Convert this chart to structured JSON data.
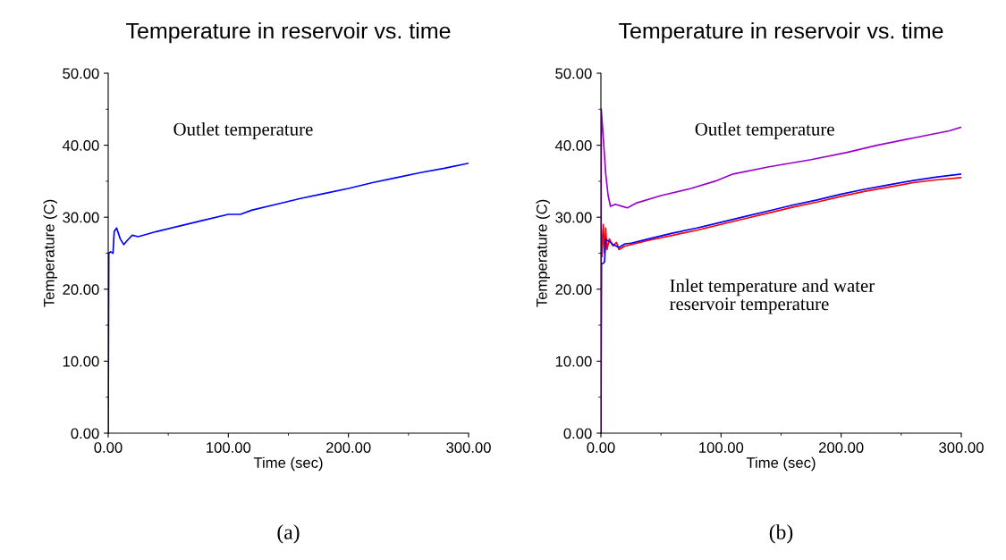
{
  "chart_data": [
    {
      "type": "line",
      "title": "Temperature in reservoir vs. time",
      "xlabel": "Time (sec)",
      "ylabel": "Temperature (C)",
      "xlim": [
        0,
        300
      ],
      "ylim": [
        0,
        50
      ],
      "xticks": [
        {
          "value": 0,
          "label": "0.00"
        },
        {
          "value": 100,
          "label": "100.00"
        },
        {
          "value": 200,
          "label": "200.00"
        },
        {
          "value": 300,
          "label": "300.00"
        }
      ],
      "yticks": [
        {
          "value": 0,
          "label": "0.00"
        },
        {
          "value": 10,
          "label": "10.00"
        },
        {
          "value": 20,
          "label": "20.00"
        },
        {
          "value": 30,
          "label": "30.00"
        },
        {
          "value": 40,
          "label": "40.00"
        },
        {
          "value": 50,
          "label": "50.00"
        }
      ],
      "grid": false,
      "legend": false,
      "series": [
        {
          "color": "#0000ff",
          "x": [
            0,
            0.5,
            2,
            4,
            5,
            7,
            10,
            13,
            16,
            20,
            25,
            40,
            60,
            80,
            100,
            110,
            120,
            140,
            160,
            180,
            200,
            220,
            240,
            260,
            280,
            300
          ],
          "values": [
            0,
            25,
            25.2,
            25,
            28,
            28.5,
            27,
            26.2,
            26.8,
            27.5,
            27.3,
            28,
            28.8,
            29.6,
            30.4,
            30.4,
            31,
            31.8,
            32.6,
            33.3,
            34,
            34.8,
            35.5,
            36.2,
            36.8,
            37.5
          ]
        }
      ],
      "annotations": [
        "Outlet temperature",
        "(a)"
      ]
    },
    {
      "type": "line",
      "title": "Temperature in reservoir vs. time",
      "xlabel": "Time (sec)",
      "ylabel": "Temperature (C)",
      "xlim": [
        0,
        300
      ],
      "ylim": [
        0,
        50
      ],
      "xticks": [
        {
          "value": 0,
          "label": "0.00"
        },
        {
          "value": 100,
          "label": "100.00"
        },
        {
          "value": 200,
          "label": "200.00"
        },
        {
          "value": 300,
          "label": "300.00"
        }
      ],
      "yticks": [
        {
          "value": 0,
          "label": "0.00"
        },
        {
          "value": 10,
          "label": "10.00"
        },
        {
          "value": 20,
          "label": "20.00"
        },
        {
          "value": 30,
          "label": "30.00"
        },
        {
          "value": 40,
          "label": "40.00"
        },
        {
          "value": 50,
          "label": "50.00"
        }
      ],
      "grid": false,
      "legend": false,
      "series": [
        {
          "color": "#ff0000",
          "x": [
            0,
            1,
            2,
            3,
            4,
            5,
            7,
            10,
            13,
            15,
            20,
            25,
            40,
            60,
            80,
            100,
            120,
            140,
            160,
            180,
            200,
            220,
            240,
            260,
            280,
            300
          ],
          "values": [
            29.5,
            24.5,
            29,
            25,
            28.5,
            25.5,
            27,
            26,
            26.5,
            25.5,
            26,
            26.2,
            26.8,
            27.5,
            28.2,
            29,
            29.8,
            30.6,
            31.4,
            32.1,
            32.9,
            33.6,
            34.2,
            34.8,
            35.2,
            35.5
          ]
        },
        {
          "color": "#0000ff",
          "x": [
            0,
            0.5,
            2,
            3,
            4,
            5,
            8,
            10,
            15,
            20,
            25,
            40,
            60,
            80,
            100,
            120,
            140,
            160,
            180,
            200,
            220,
            240,
            260,
            280,
            300
          ],
          "values": [
            0,
            23.5,
            23.6,
            23.8,
            27,
            26.8,
            26.5,
            26.2,
            25.8,
            26.3,
            26.4,
            27,
            27.8,
            28.5,
            29.3,
            30.1,
            30.9,
            31.7,
            32.4,
            33.2,
            33.9,
            34.5,
            35.1,
            35.6,
            36
          ]
        },
        {
          "color": "#9900cc",
          "x": [
            0,
            0.3,
            2,
            4,
            6,
            8,
            12,
            18,
            22,
            30,
            50,
            75,
            95,
            110,
            140,
            175,
            205,
            230,
            260,
            290,
            300
          ],
          "values": [
            0,
            45,
            41,
            36,
            33,
            31.5,
            31.8,
            31.5,
            31.3,
            32,
            33,
            34,
            35,
            36,
            37,
            38,
            39,
            40,
            41,
            42,
            42.5
          ]
        }
      ],
      "annotations": [
        "Outlet temperature",
        "Inlet temperature and water\nreservoir temperature",
        "(b)"
      ]
    }
  ]
}
